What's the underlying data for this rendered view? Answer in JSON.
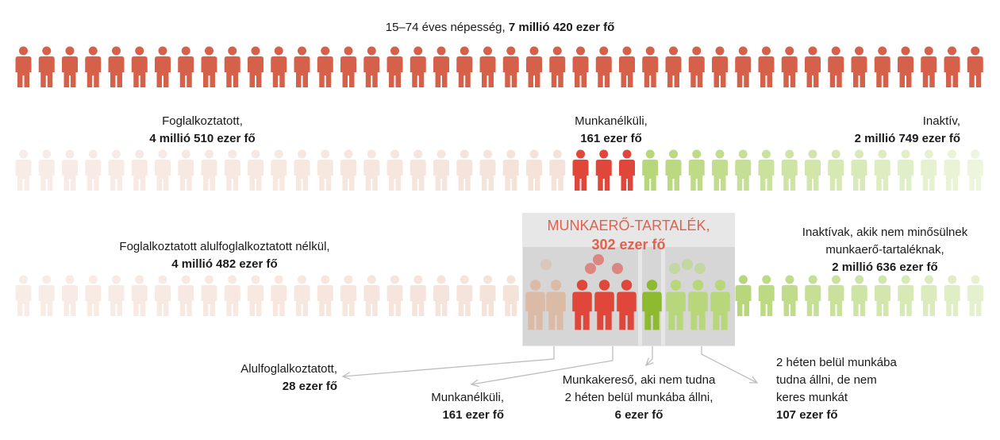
{
  "title": {
    "text": "15–74 éves népesség, ",
    "value": "7 millió 420 ezer fő"
  },
  "row2": {
    "foglalkoztatott": {
      "label": "Foglalkoztatott,",
      "value": "4 millió 510 ezer fő"
    },
    "munkanelkuli": {
      "label": "Munkanélküli,",
      "value": "161 ezer fő"
    },
    "inaktiv": {
      "label": "Inaktív,",
      "value": "2 millió 749 ezer fő"
    }
  },
  "row3": {
    "foglalkoztatott_nelkul": {
      "label": "Foglalkoztatott alulfoglalkoztatott nélkül,",
      "value": "4 millió 482 ezer fő"
    },
    "tartalek": {
      "label": "MUNKAERŐ-TARTALÉK,",
      "value": "302 ezer fő"
    },
    "inaktivak_nem": {
      "line1": "Inaktívak, akik nem minősülnek",
      "line2": "munkaerő-tartaléknak,",
      "value": "2 millió 636 ezer fő"
    }
  },
  "bottom": {
    "alulfoglalkoztatott": {
      "label": "Alulfoglalkoztatott,",
      "value": "28 ezer fő"
    },
    "munkanelkuli": {
      "label": "Munkanélküli,",
      "value": "161 ezer fő"
    },
    "munkakereso": {
      "line1": "Munkakereső, aki nem tudna",
      "line2": "2 héten belül munkába állni,",
      "value": "6 ezer fő"
    },
    "ket_heten": {
      "line1": "2 héten belül munkába",
      "line2": "tudna állni, de nem",
      "line3": "keres munkát",
      "value": "107 ezer fő"
    }
  },
  "colors": {
    "population": "#d5614a",
    "employed_faded": "#f3ddd2",
    "unemployed": "#e0463a",
    "inactive": "#b7d77a",
    "underemployed": "#dcbba6",
    "jobseeker": "#8dba2e",
    "box": "#e7e7e7"
  }
}
